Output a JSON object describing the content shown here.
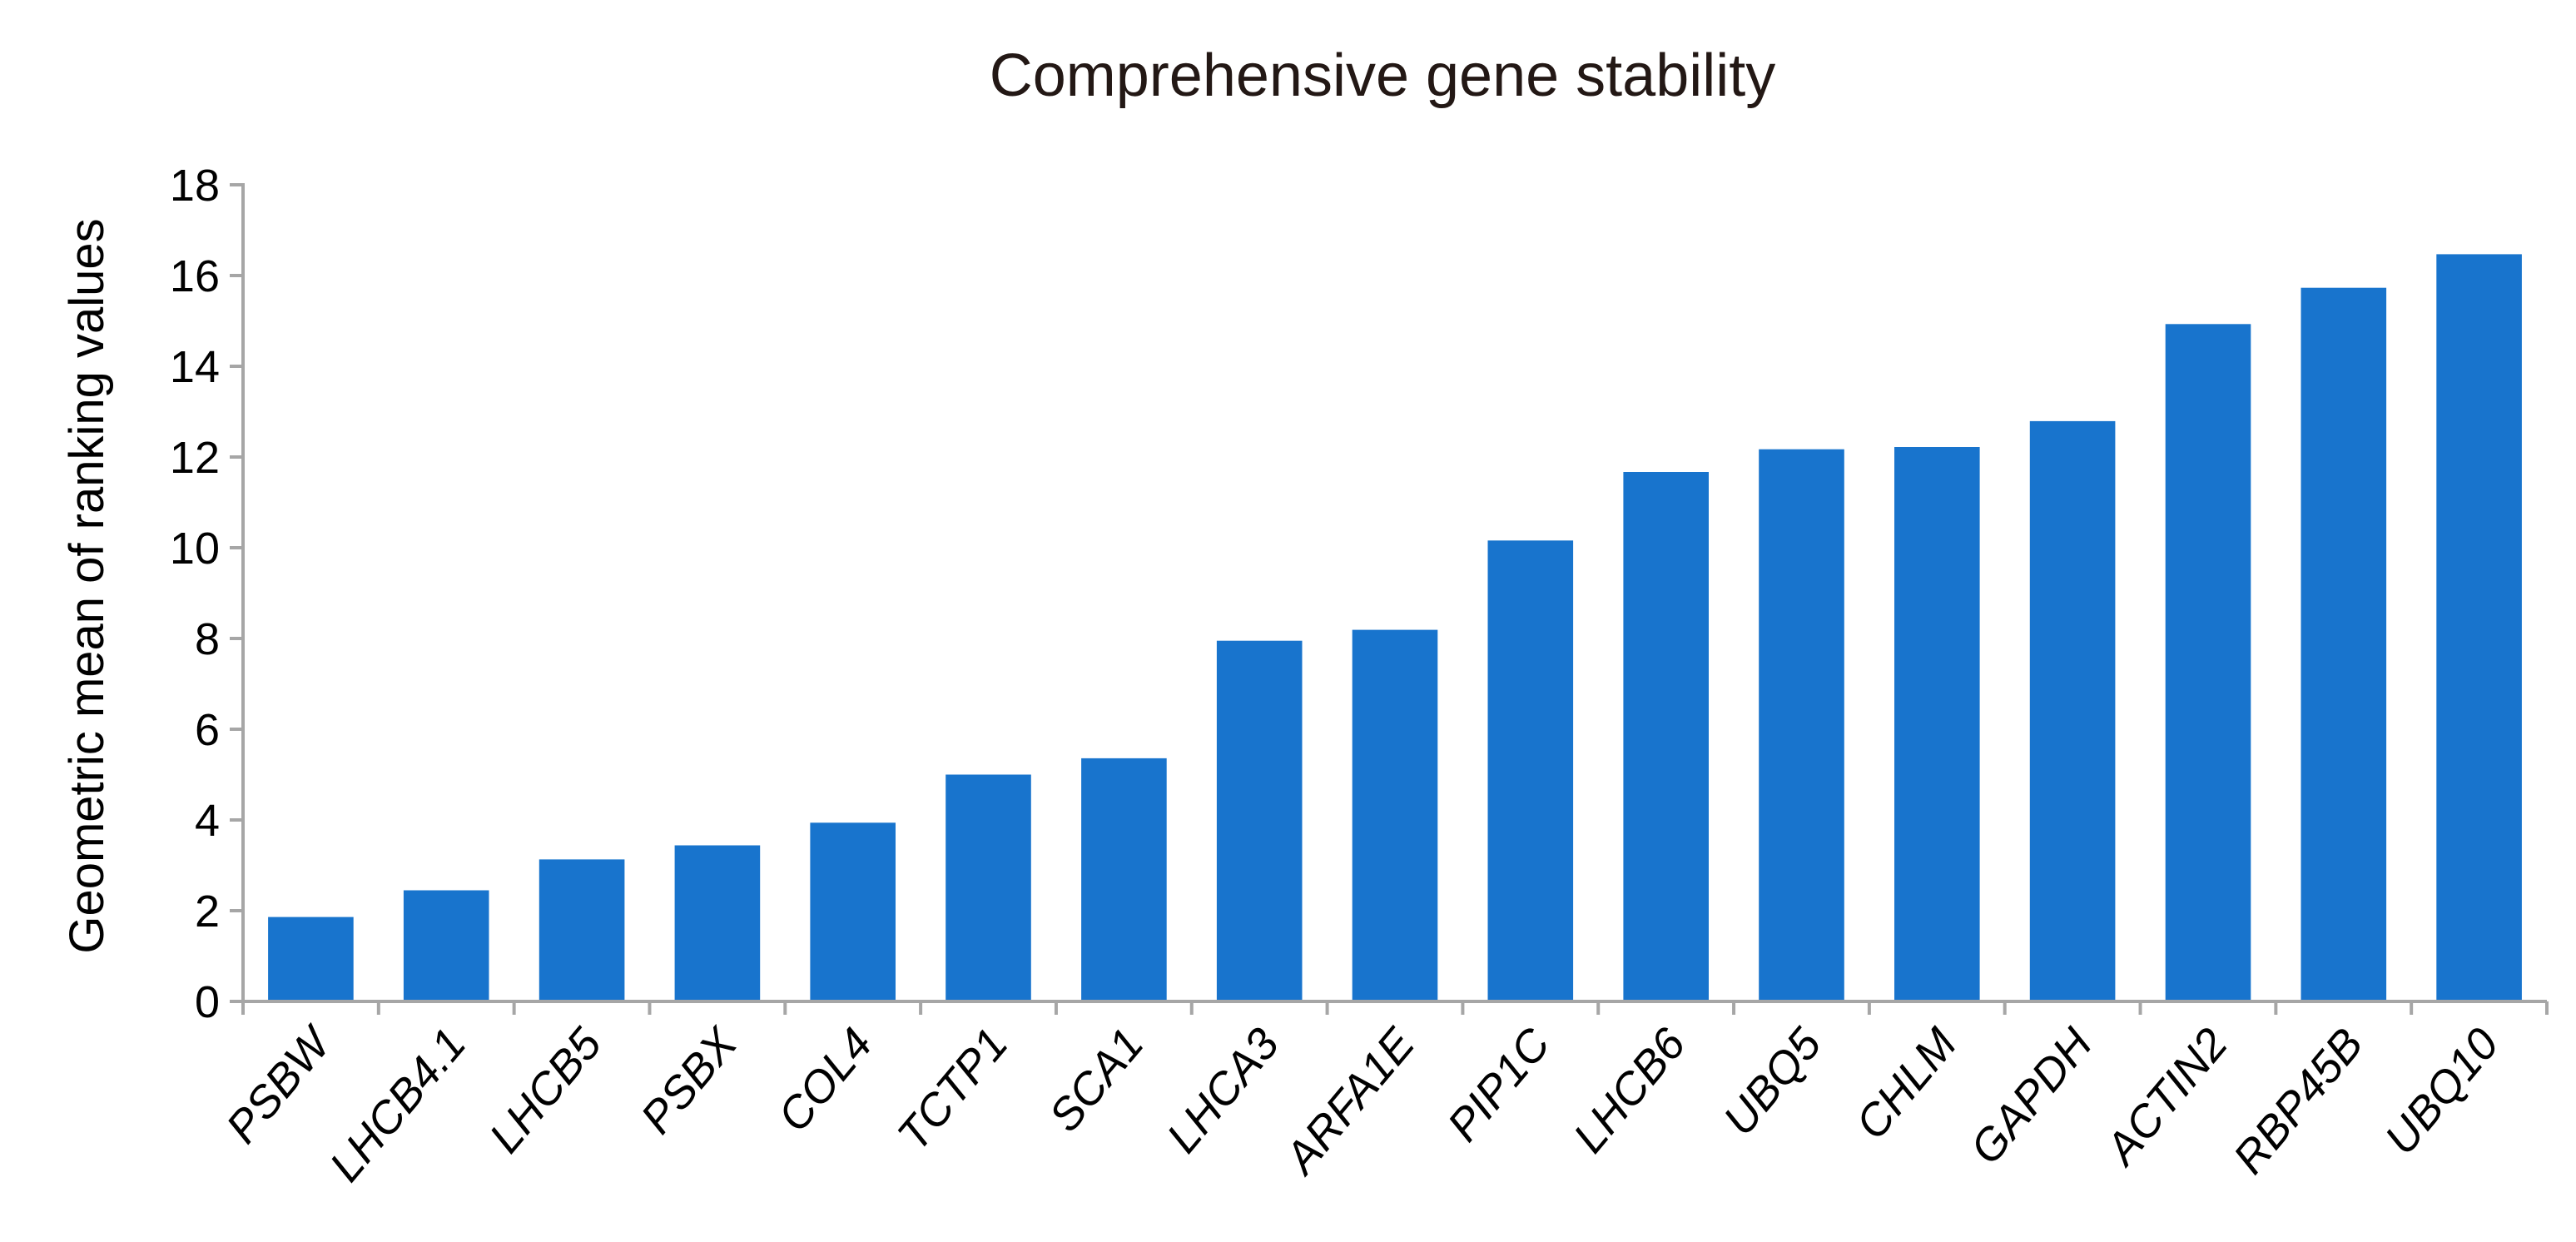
{
  "chart_data": {
    "type": "bar",
    "title": "Comprehensive gene stability",
    "xlabel": "",
    "ylabel": "Geometric mean of ranking values",
    "ylim": [
      0,
      18
    ],
    "yticks": [
      0,
      2,
      4,
      6,
      8,
      10,
      12,
      14,
      16,
      18
    ],
    "grid": false,
    "legend": "none",
    "bar_color": "#1874cd",
    "categories": [
      "PSBW",
      "LHCB4.1",
      "LHCB5",
      "PSBX",
      "COL4",
      "TCTP1",
      "SCA1",
      "LHCA3",
      "ARFA1E",
      "PIP1C",
      "LHCB6",
      "UBQ5",
      "CHLM",
      "GAPDH",
      "ACTIN2",
      "RBP45B",
      "UBQ10"
    ],
    "values": [
      1.86,
      2.45,
      3.13,
      3.44,
      3.94,
      5.0,
      5.36,
      7.95,
      8.19,
      10.16,
      11.67,
      12.17,
      12.22,
      12.79,
      14.93,
      15.73,
      16.47
    ]
  }
}
